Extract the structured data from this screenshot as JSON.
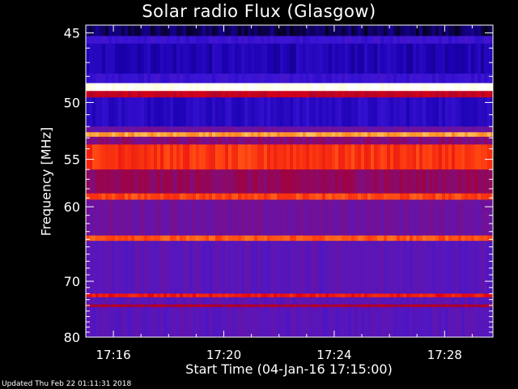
{
  "title": "Solar radio Flux (Glasgow)",
  "footer_text": "Updated Thu Feb 22 01:11:31 2018",
  "chart_data": {
    "type": "heatmap",
    "title": "Solar radio Flux (Glasgow)",
    "xlabel": "Start Time (04-Jan-16 17:15:00)",
    "ylabel": "Frequency [MHz]",
    "x_ticks": [
      "17:16",
      "17:20",
      "17:24",
      "17:28"
    ],
    "x_tick_minutes": [
      1,
      5,
      9,
      13
    ],
    "xlim_minutes": [
      0,
      14.75
    ],
    "y_ticks": [
      45,
      50,
      55,
      60,
      70,
      80
    ],
    "ylim": [
      44.5,
      80
    ],
    "y_scale": "reciprocal",
    "colormap": [
      "#000000",
      "#1a00b0",
      "#3a14d6",
      "#5a16b8",
      "#7a0e8a",
      "#a80030",
      "#e00010",
      "#ff4010",
      "#ffa030",
      "#ffffc8",
      "#ffffff"
    ],
    "bands": [
      {
        "from": 44.5,
        "to": 45.2,
        "level": 0.05
      },
      {
        "from": 45.2,
        "to": 45.7,
        "level": 0.2
      },
      {
        "from": 45.7,
        "to": 47.8,
        "level": 0.12
      },
      {
        "from": 47.8,
        "to": 48.5,
        "level": 0.2
      },
      {
        "from": 48.5,
        "to": 49.1,
        "level": 0.97
      },
      {
        "from": 49.1,
        "to": 49.6,
        "level": 0.55
      },
      {
        "from": 49.6,
        "to": 52.0,
        "level": 0.15
      },
      {
        "from": 52.0,
        "to": 52.5,
        "level": 0.35
      },
      {
        "from": 52.5,
        "to": 52.9,
        "level": 0.8
      },
      {
        "from": 52.9,
        "to": 53.6,
        "level": 0.42
      },
      {
        "from": 53.6,
        "to": 56.0,
        "level": 0.68
      },
      {
        "from": 56.0,
        "to": 58.5,
        "level": 0.45
      },
      {
        "from": 58.5,
        "to": 59.2,
        "level": 0.7
      },
      {
        "from": 59.2,
        "to": 63.5,
        "level": 0.36
      },
      {
        "from": 63.5,
        "to": 64.2,
        "level": 0.72
      },
      {
        "from": 64.2,
        "to": 72.0,
        "level": 0.3
      },
      {
        "from": 72.0,
        "to": 72.6,
        "level": 0.64
      },
      {
        "from": 72.6,
        "to": 73.8,
        "level": 0.3
      },
      {
        "from": 73.8,
        "to": 74.3,
        "level": 0.5
      },
      {
        "from": 74.3,
        "to": 80.0,
        "level": 0.29
      }
    ]
  }
}
